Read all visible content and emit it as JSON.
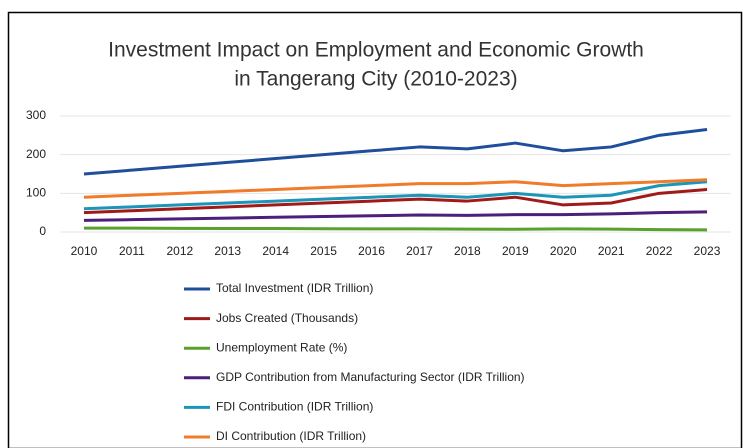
{
  "chart_data": {
    "type": "line",
    "title": [
      "Investment Impact on Employment and Economic Growth",
      "in Tangerang City (2010-2023)"
    ],
    "categories": [
      "2010",
      "2011",
      "2012",
      "2013",
      "2014",
      "2015",
      "2016",
      "2017",
      "2018",
      "2019",
      "2020",
      "2021",
      "2022",
      "2023"
    ],
    "series": [
      {
        "name": "Total Investment (IDR Trillion)",
        "color": "#1f4e9c",
        "values": [
          150,
          160,
          170,
          180,
          190,
          200,
          210,
          220,
          215,
          230,
          210,
          220,
          250,
          265
        ]
      },
      {
        "name": "Jobs Created (Thousands)",
        "color": "#a11a1a",
        "values": [
          50,
          55,
          60,
          65,
          70,
          75,
          80,
          85,
          80,
          90,
          70,
          75,
          100,
          110
        ]
      },
      {
        "name": "Unemployment Rate (%)",
        "color": "#5aa02c",
        "values": [
          10,
          10,
          9.5,
          9,
          9,
          8.5,
          8,
          8,
          7.5,
          7,
          8,
          7.5,
          6,
          5.5
        ]
      },
      {
        "name": "GDP Contribution from Manufacturing Sector (IDR Trillion)",
        "color": "#4b1f7a",
        "values": [
          30,
          32,
          34,
          36,
          38,
          40,
          42,
          44,
          43,
          45,
          45,
          47,
          50,
          52
        ]
      },
      {
        "name": "FDI Contribution (IDR Trillion)",
        "color": "#1b95b8",
        "values": [
          60,
          65,
          70,
          75,
          80,
          85,
          90,
          95,
          90,
          100,
          90,
          95,
          120,
          130
        ]
      },
      {
        "name": "DI Contribution (IDR Trillion)",
        "color": "#f07b2a",
        "values": [
          90,
          95,
          100,
          105,
          110,
          115,
          120,
          125,
          125,
          130,
          120,
          125,
          130,
          135
        ]
      }
    ],
    "ylim": [
      0,
      300
    ],
    "yticks": [
      0,
      100,
      200,
      300
    ],
    "grid": true,
    "legend": "bottom"
  }
}
